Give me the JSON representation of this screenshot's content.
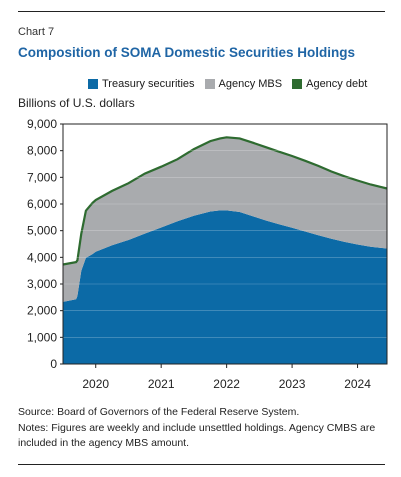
{
  "header": {
    "chart_number": "Chart 7",
    "title": "Composition of SOMA Domestic Securities Holdings"
  },
  "footer": {
    "source": "Source: Board of Governors of the Federal Reserve System.",
    "notes": "Notes: Figures are weekly and include unsettled holdings. Agency CMBS are included in the agency MBS amount."
  },
  "chart_data": {
    "type": "area",
    "stacked": true,
    "ylabel": "Billions of U.S. dollars",
    "ylim": [
      0,
      9000
    ],
    "yticks": [
      0,
      1000,
      2000,
      3000,
      4000,
      5000,
      6000,
      7000,
      8000,
      9000
    ],
    "ytick_labels": [
      "0",
      "1,000",
      "2,000",
      "3,000",
      "4,000",
      "5,000",
      "6,000",
      "7,000",
      "8,000",
      "9,000"
    ],
    "xlim": [
      2019.5,
      2024.45
    ],
    "xticks": [
      2020,
      2021,
      2022,
      2023,
      2024
    ],
    "xtick_labels": [
      "2020",
      "2021",
      "2022",
      "2023",
      "2024"
    ],
    "grid": true,
    "legend_position": "top",
    "x": [
      2019.5,
      2019.7,
      2019.72,
      2019.78,
      2019.85,
      2019.95,
      2020.0,
      2020.25,
      2020.5,
      2020.75,
      2021.0,
      2021.25,
      2021.5,
      2021.75,
      2021.9,
      2022.0,
      2022.2,
      2022.4,
      2022.6,
      2022.8,
      2023.0,
      2023.2,
      2023.4,
      2023.6,
      2023.8,
      2024.0,
      2024.2,
      2024.45
    ],
    "series": [
      {
        "name": "Treasury securities",
        "color": "#0c6aa6",
        "values": [
          2330,
          2430,
          2550,
          3500,
          3980,
          4120,
          4210,
          4450,
          4650,
          4890,
          5120,
          5350,
          5560,
          5720,
          5760,
          5760,
          5700,
          5540,
          5380,
          5240,
          5110,
          4970,
          4830,
          4700,
          4580,
          4480,
          4400,
          4330
        ]
      },
      {
        "name": "Agency MBS",
        "color": "#a9abae",
        "values": [
          1390,
          1380,
          1330,
          1380,
          1760,
          1910,
          1930,
          2030,
          2120,
          2240,
          2270,
          2320,
          2490,
          2630,
          2690,
          2730,
          2750,
          2750,
          2740,
          2710,
          2680,
          2640,
          2590,
          2510,
          2450,
          2390,
          2320,
          2240
        ]
      },
      {
        "name": "Agency debt",
        "color": "#2e6b30",
        "values": [
          10,
          10,
          10,
          10,
          10,
          10,
          10,
          10,
          10,
          10,
          10,
          10,
          10,
          10,
          10,
          10,
          10,
          10,
          10,
          10,
          10,
          10,
          10,
          10,
          10,
          10,
          10,
          10
        ]
      }
    ]
  }
}
